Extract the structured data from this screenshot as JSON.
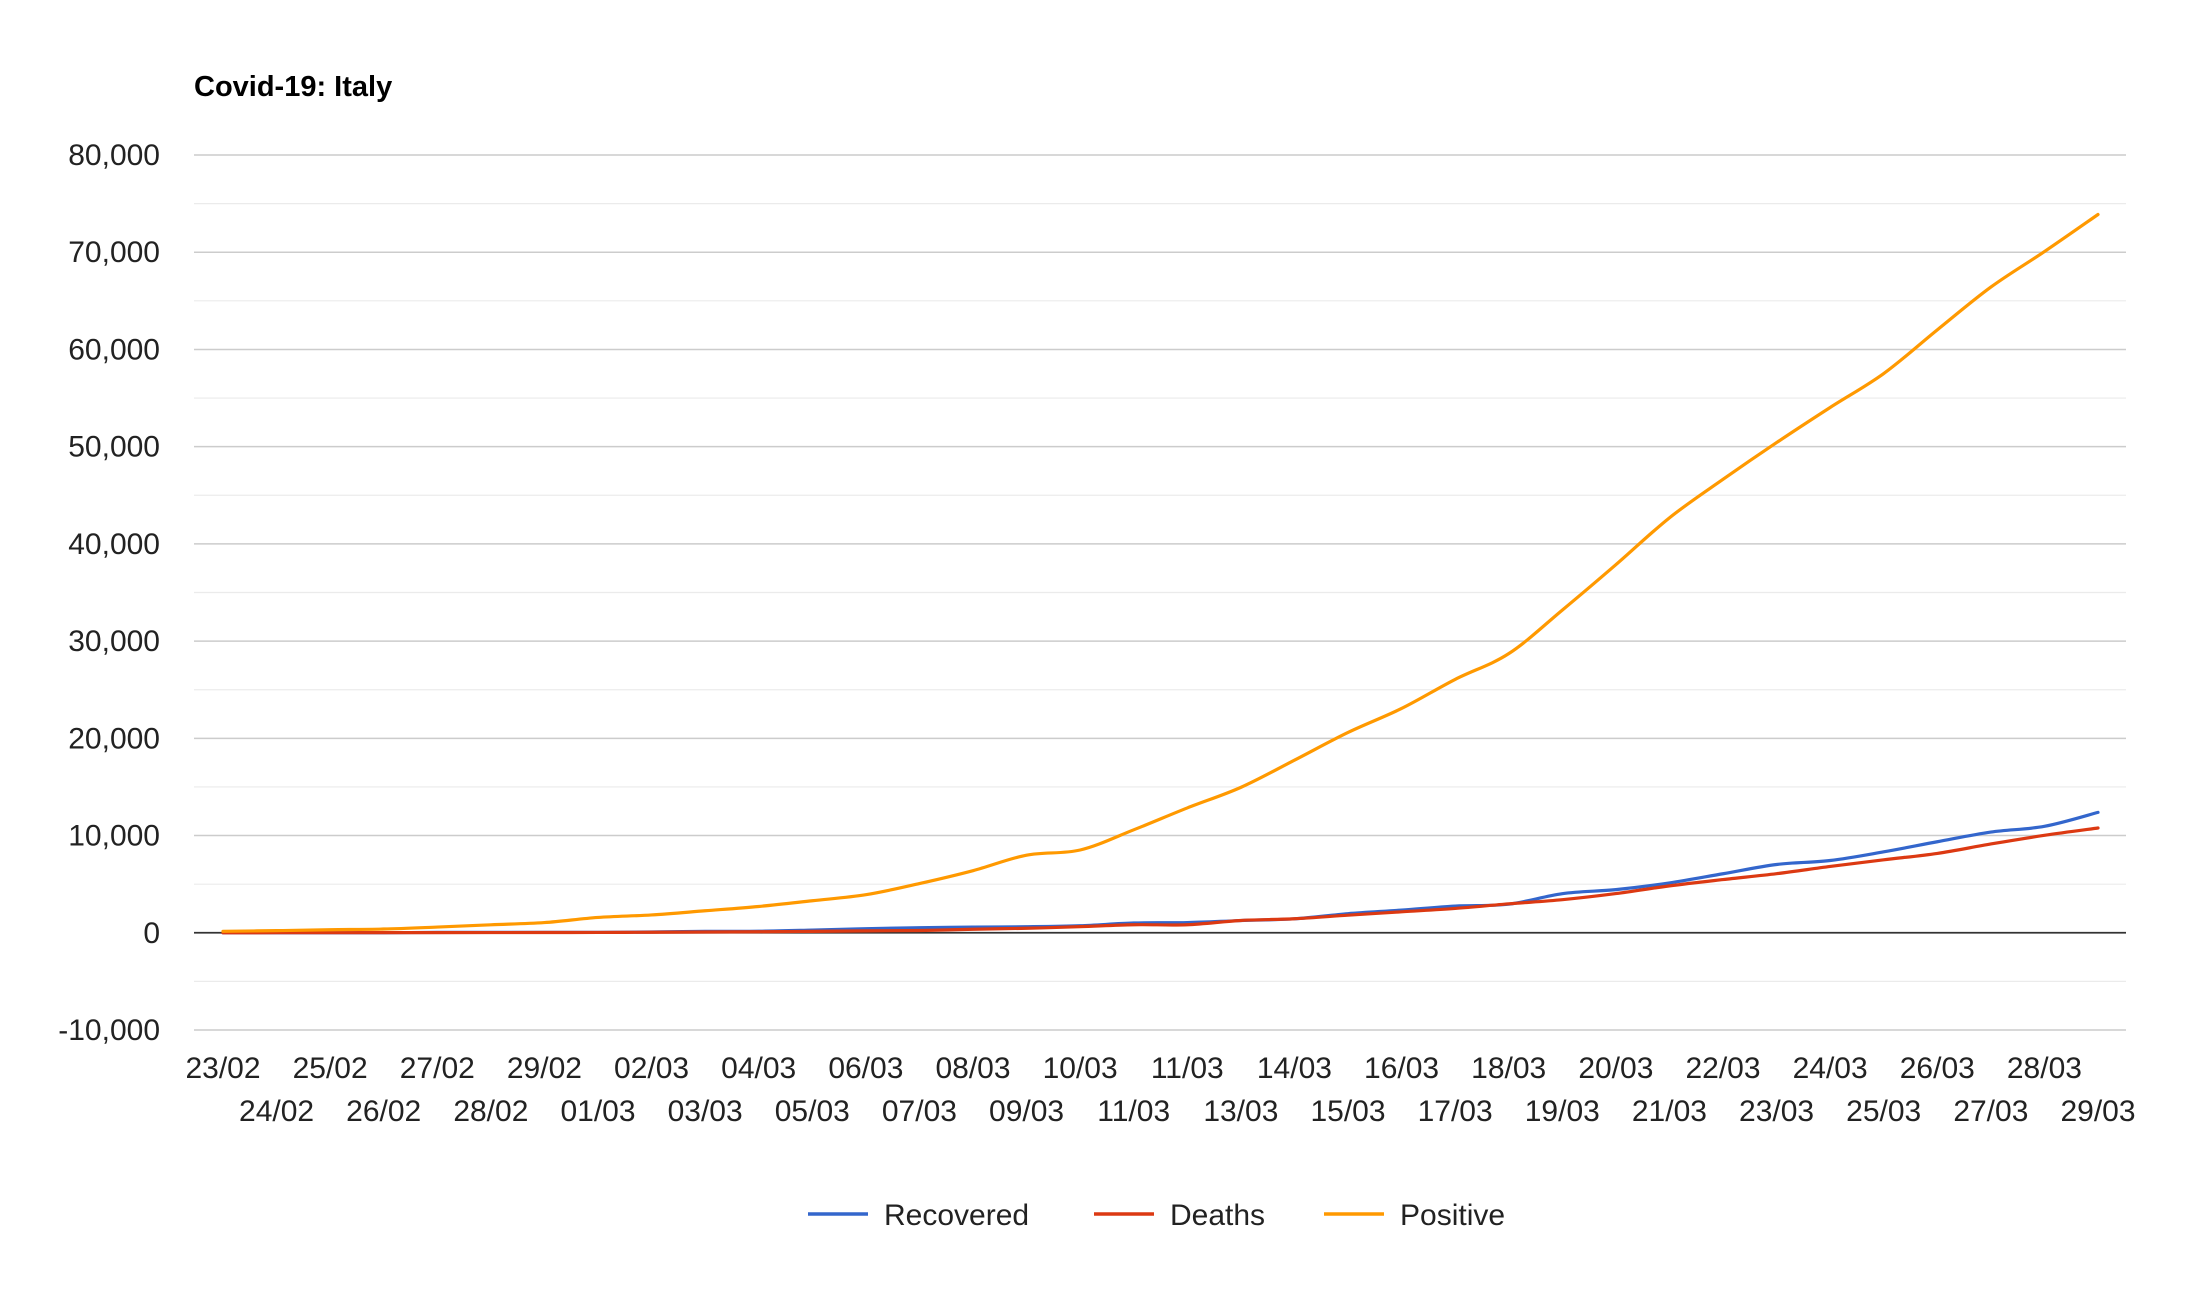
{
  "chart_data": {
    "type": "line",
    "title": "Covid-19: Italy",
    "xlabel": "",
    "ylabel": "",
    "ylim": [
      -10000,
      80000
    ],
    "y_ticks": [
      "80,000",
      "70,000",
      "60,000",
      "50,000",
      "40,000",
      "30,000",
      "20,000",
      "10,000",
      "0",
      "-10,000"
    ],
    "y_tick_values": [
      80000,
      70000,
      60000,
      50000,
      40000,
      30000,
      20000,
      10000,
      0,
      -10000
    ],
    "grid": true,
    "legend_position": "bottom",
    "categories": [
      "23/02",
      "24/02",
      "25/02",
      "26/02",
      "27/02",
      "28/02",
      "29/02",
      "01/03",
      "02/03",
      "03/03",
      "04/03",
      "05/03",
      "06/03",
      "07/03",
      "08/03",
      "09/03",
      "10/03",
      "11/03",
      "11/03",
      "13/03",
      "14/03",
      "15/03",
      "16/03",
      "17/03",
      "18/03",
      "19/03",
      "20/03",
      "21/03",
      "22/03",
      "23/03",
      "24/03",
      "25/03",
      "26/03",
      "27/03",
      "28/03",
      "29/03"
    ],
    "series": [
      {
        "name": "Recovered",
        "color": "#3366cc",
        "values": [
          0,
          1,
          1,
          3,
          45,
          46,
          46,
          50,
          83,
          149,
          160,
          276,
          414,
          523,
          589,
          622,
          724,
          1004,
          1045,
          1258,
          1439,
          1966,
          2335,
          2749,
          2941,
          4025,
          4440,
          5129,
          6072,
          7024,
          7432,
          8326,
          9362,
          10361,
          10950,
          12384
        ]
      },
      {
        "name": "Deaths",
        "color": "#dc3912",
        "values": [
          3,
          7,
          10,
          12,
          17,
          21,
          29,
          34,
          52,
          79,
          107,
          148,
          197,
          233,
          366,
          463,
          631,
          827,
          827,
          1266,
          1441,
          1809,
          2158,
          2503,
          2978,
          3405,
          4032,
          4825,
          5476,
          6077,
          6820,
          7503,
          8165,
          9134,
          10023,
          10779
        ]
      },
      {
        "name": "Positive",
        "color": "#ff9900",
        "values": [
          152,
          221,
          311,
          385,
          588,
          821,
          1049,
          1577,
          1835,
          2263,
          2706,
          3296,
          3916,
          5061,
          6387,
          7985,
          8514,
          10590,
          12839,
          14955,
          17750,
          20603,
          23073,
          26062,
          28710,
          33190,
          37860,
          42681,
          46638,
          50418,
          54030,
          57521,
          62013,
          66414,
          70065,
          73880
        ]
      }
    ]
  }
}
